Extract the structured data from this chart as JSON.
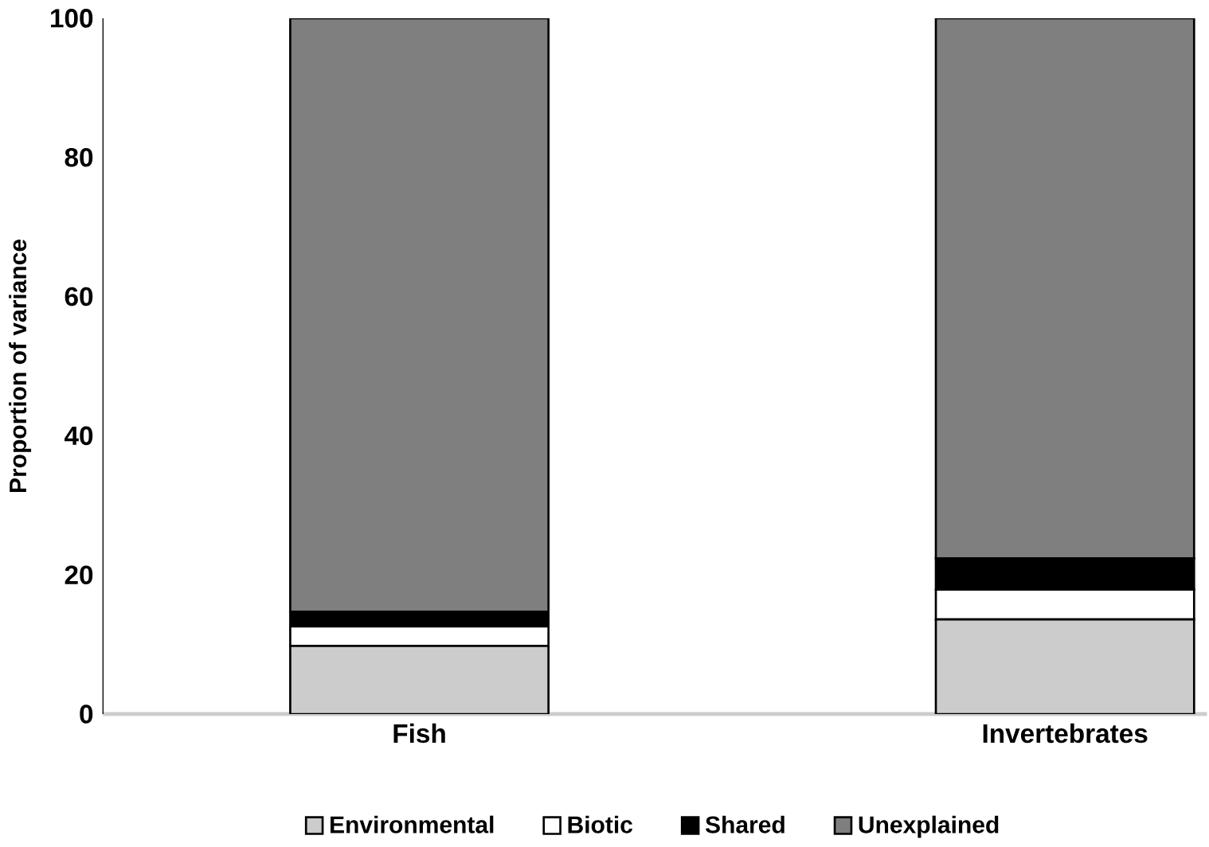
{
  "chart_data": {
    "type": "bar",
    "stacked": true,
    "ylabel": "Proportion of variance",
    "categories": [
      "Fish",
      "Invertebrates"
    ],
    "ylim": [
      0,
      100
    ],
    "yticks": [
      0,
      20,
      40,
      60,
      80,
      100
    ],
    "legend": "bottom",
    "grid": false,
    "series": [
      {
        "name": "Environmental",
        "color": "#cccccc",
        "values": [
          9.8,
          13.6
        ]
      },
      {
        "name": "Biotic",
        "color": "#ffffff",
        "values": [
          2.8,
          4.3
        ]
      },
      {
        "name": "Shared",
        "color": "#000000",
        "values": [
          2.1,
          4.5
        ]
      },
      {
        "name": "Unexplained",
        "color": "#7f7f7f",
        "values": [
          85.3,
          77.6
        ]
      }
    ]
  }
}
